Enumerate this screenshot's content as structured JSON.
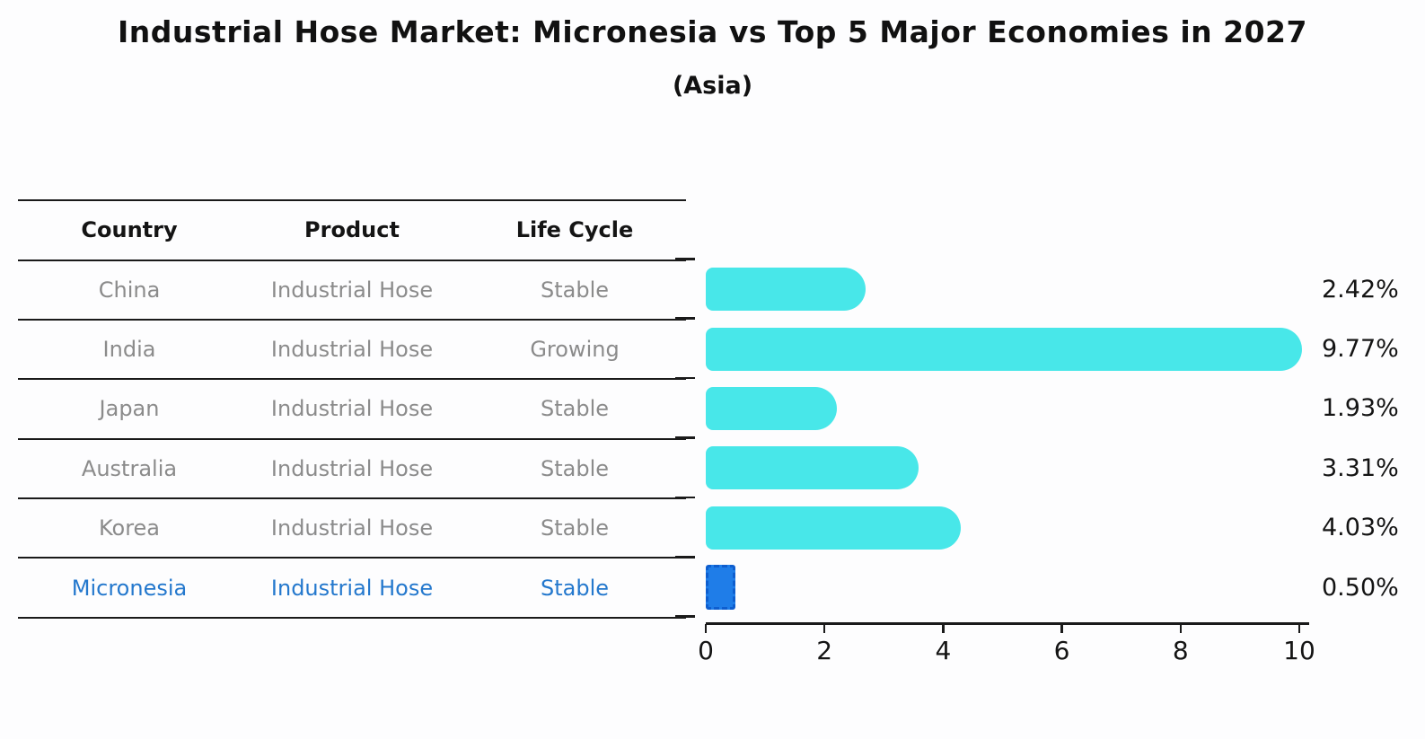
{
  "title": "Industrial Hose Market: Micronesia vs Top 5 Major Economies in 2027",
  "subtitle": "(Asia)",
  "table": {
    "headers": [
      "Country",
      "Product",
      "Life Cycle"
    ],
    "rows": [
      {
        "country": "China",
        "product": "Industrial Hose",
        "life_cycle": "Stable",
        "highlight": false
      },
      {
        "country": "India",
        "product": "Industrial Hose",
        "life_cycle": "Growing",
        "highlight": false
      },
      {
        "country": "Japan",
        "product": "Industrial Hose",
        "life_cycle": "Stable",
        "highlight": false
      },
      {
        "country": "Australia",
        "product": "Industrial Hose",
        "life_cycle": "Stable",
        "highlight": false
      },
      {
        "country": "Korea",
        "product": "Industrial Hose",
        "life_cycle": "Stable",
        "highlight": false
      },
      {
        "country": "Micronesia",
        "product": "Industrial Hose",
        "life_cycle": "Stable",
        "highlight": true
      }
    ]
  },
  "chart_data": {
    "type": "bar",
    "orientation": "horizontal",
    "title": "Industrial Hose Market: Micronesia vs Top 5 Major Economies in 2027",
    "subtitle": "(Asia)",
    "categories": [
      "China",
      "India",
      "Japan",
      "Australia",
      "Korea",
      "Micronesia"
    ],
    "values": [
      2.42,
      9.77,
      1.93,
      3.31,
      4.03,
      0.5
    ],
    "value_labels": [
      "2.42%",
      "9.77%",
      "1.93%",
      "3.31%",
      "4.03%",
      "0.50%"
    ],
    "unit": "percent CAGR",
    "xlabel": "",
    "ylabel": "",
    "xlim": [
      0,
      10.15
    ],
    "xticks": [
      "0",
      "2",
      "4",
      "6",
      "8",
      "10"
    ],
    "xtick_values": [
      0,
      2,
      4,
      6,
      8,
      10
    ],
    "grid": false,
    "legend": "none",
    "highlight_index": 5,
    "bar_color": "#48E7E9",
    "highlight_bar_color": "#1F7DE8",
    "highlight_text_color": "#2478CD",
    "axis_color": "#1A1A1A",
    "text_color": "#141414",
    "muted_text_color": "#8B8B8B"
  }
}
